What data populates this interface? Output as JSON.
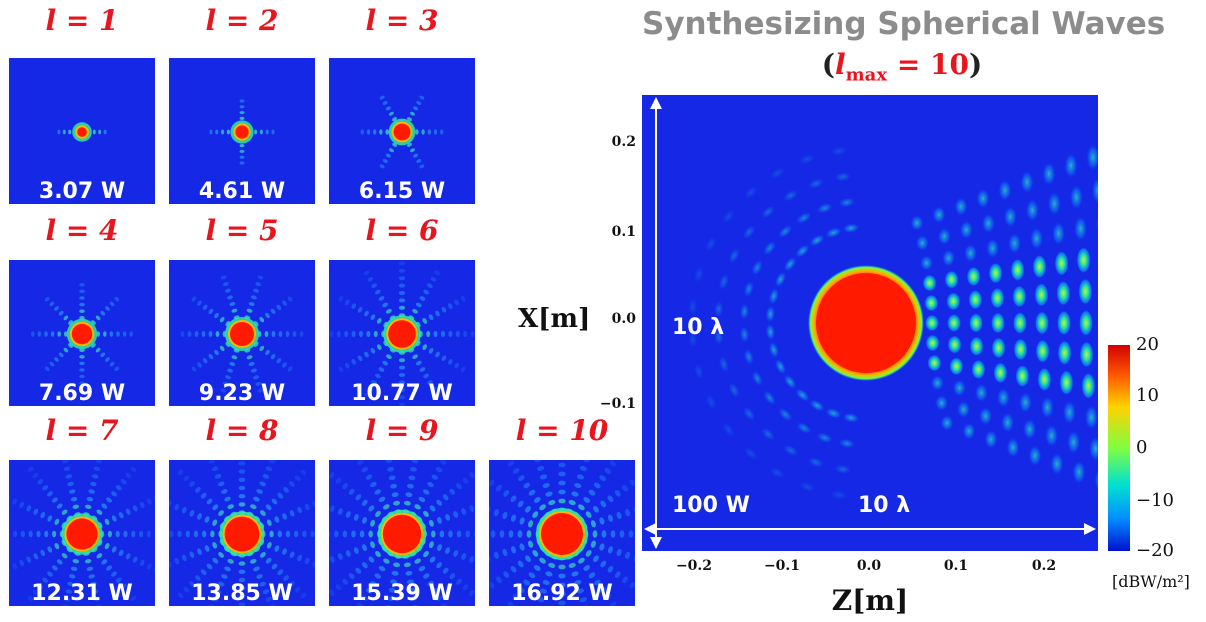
{
  "panels": [
    {
      "label": "l = 1",
      "power": "3.07 W"
    },
    {
      "label": "l = 2",
      "power": "4.61 W"
    },
    {
      "label": "l = 3",
      "power": "6.15 W"
    },
    {
      "label": "l = 4",
      "power": "7.69 W"
    },
    {
      "label": "l = 5",
      "power": "9.23 W"
    },
    {
      "label": "l = 6",
      "power": "10.77 W"
    },
    {
      "label": "l = 7",
      "power": "12.31 W"
    },
    {
      "label": "l = 8",
      "power": "13.85 W"
    },
    {
      "label": "l = 9",
      "power": "15.39 W"
    },
    {
      "label": "l = 10",
      "power": "16.92 W"
    }
  ],
  "main": {
    "title": "Synthesizing Spherical Waves",
    "subtitle_open": "(",
    "subtitle_math": "l",
    "subtitle_sub": "max",
    "subtitle_eq": " = 10",
    "subtitle_close": ")",
    "xlabel": "Z[m]",
    "ylabel": "X[m]",
    "x_ticks": [
      "−0.2",
      "−0.1",
      "0.0",
      "0.1",
      "0.2"
    ],
    "y_ticks": [
      "0.2",
      "0.1",
      "0.0",
      "−0.1"
    ],
    "annotation_vertical": "10 λ",
    "annotation_horizontal": "10 λ",
    "annotation_power": "100 W",
    "colorbar_ticks": [
      "20",
      "10",
      "0",
      "−10",
      "−20"
    ],
    "colorbar_unit": "[dBW/m²]"
  },
  "colors": {
    "label_red": "#e8141e",
    "field_blue": "#1428e6",
    "title_gray": "#8c8c8c"
  }
}
